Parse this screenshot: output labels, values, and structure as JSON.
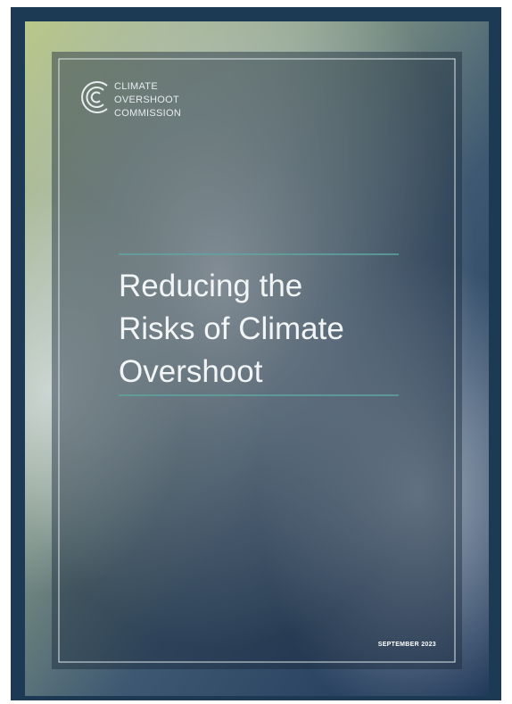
{
  "logo": {
    "lines": [
      "CLIMATE",
      "OVERSHOOT",
      "COMMISSION"
    ]
  },
  "title": {
    "lines": [
      "Reducing the",
      "Risks of Climate",
      "Overshoot"
    ]
  },
  "date": "SEPTEMBER 2023"
}
